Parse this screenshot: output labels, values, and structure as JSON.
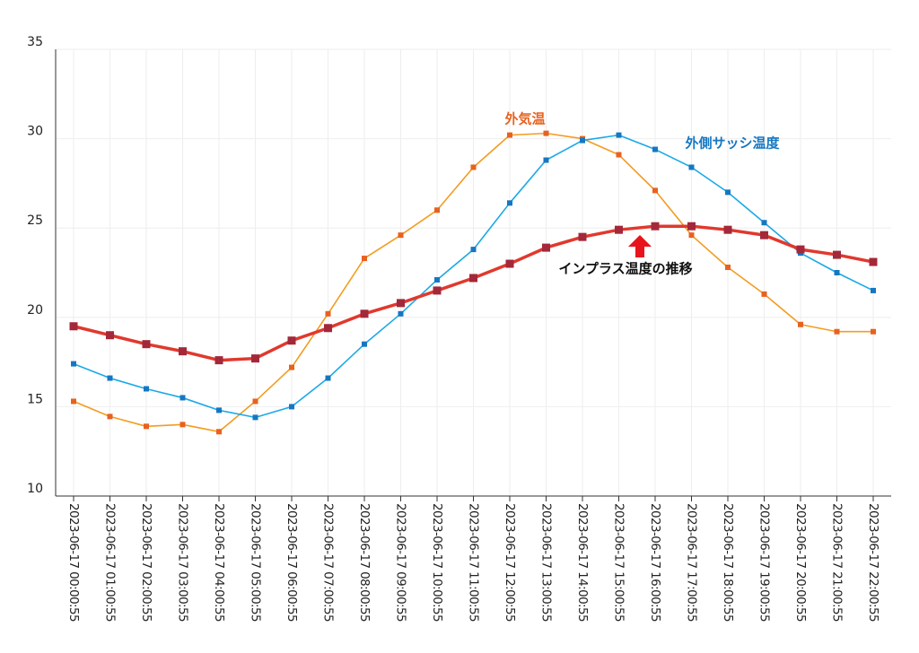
{
  "chart_data": {
    "type": "line",
    "categories": [
      "2023-06-17 00:00:55",
      "2023-06-17 01:00:55",
      "2023-06-17 02:00:55",
      "2023-06-17 03:00:55",
      "2023-06-17 04:00:55",
      "2023-06-17 05:00:55",
      "2023-06-17 06:00:55",
      "2023-06-17 07:00:55",
      "2023-06-17 08:00:55",
      "2023-06-17 09:00:55",
      "2023-06-17 10:00:55",
      "2023-06-17 11:00:55",
      "2023-06-17 12:00:55",
      "2023-06-17 13:00:55",
      "2023-06-17 14:00:55",
      "2023-06-17 15:00:55",
      "2023-06-17 16:00:55",
      "2023-06-17 17:00:55",
      "2023-06-17 18:00:55",
      "2023-06-17 19:00:55",
      "2023-06-17 20:00:55",
      "2023-06-17 21:00:55",
      "2023-06-17 22:00:55"
    ],
    "series": [
      {
        "name": "外気温",
        "color": "#f39c1f",
        "marker": "#e8611e",
        "width": 1.6,
        "values": [
          15.3,
          14.45,
          13.9,
          14.0,
          13.6,
          15.3,
          17.2,
          20.2,
          23.3,
          24.6,
          26.0,
          28.4,
          30.2,
          30.3,
          30.0,
          29.1,
          27.1,
          24.6,
          22.8,
          21.3,
          19.6,
          19.2,
          19.2
        ]
      },
      {
        "name": "外側サッシ温度",
        "color": "#1aa9e6",
        "marker": "#1577c2",
        "width": 1.6,
        "values": [
          17.4,
          16.6,
          16.0,
          15.5,
          14.8,
          14.4,
          15.0,
          16.6,
          18.5,
          20.2,
          22.1,
          23.8,
          26.4,
          28.8,
          29.9,
          30.2,
          29.4,
          28.4,
          27.0,
          25.3,
          23.6,
          22.5,
          21.5
        ]
      },
      {
        "name": "インプラス温度の推移",
        "color": "#e0392e",
        "marker": "#a3283a",
        "width": 3.5,
        "values": [
          19.5,
          19.0,
          18.5,
          18.1,
          17.6,
          17.7,
          18.7,
          19.4,
          20.2,
          20.8,
          21.5,
          22.2,
          23.0,
          23.9,
          24.5,
          24.9,
          25.1,
          25.1,
          24.9,
          24.6,
          23.8,
          23.5,
          23.1
        ]
      }
    ],
    "ylim": [
      10,
      35
    ],
    "yticks": [
      10,
      15,
      20,
      25,
      30,
      35
    ],
    "grid": true
  }
}
